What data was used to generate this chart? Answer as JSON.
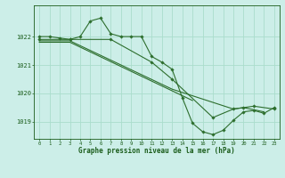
{
  "background_color": "#cceee8",
  "grid_color": "#aaddcc",
  "line_color": "#2d6e2d",
  "marker_color": "#2d6e2d",
  "xlabel": "Graphe pression niveau de la mer (hPa)",
  "xlabel_color": "#1a5c1a",
  "tick_label_color": "#1a5c1a",
  "xlim": [
    -0.5,
    23.5
  ],
  "ylim": [
    1018.4,
    1023.1
  ],
  "yticks": [
    1019,
    1020,
    1021,
    1022
  ],
  "lines_full": [
    {
      "x": [
        0,
        1,
        2,
        3,
        4,
        5,
        6,
        7,
        8,
        9,
        10,
        11,
        12,
        13,
        14,
        15,
        16,
        17,
        18,
        19,
        20,
        21,
        22,
        23
      ],
      "y": [
        1022.0,
        1022.0,
        1021.95,
        1021.9,
        1022.0,
        1022.55,
        1022.65,
        1022.1,
        1022.0,
        1022.0,
        1022.0,
        1021.3,
        1021.1,
        1020.85,
        1019.85,
        1018.95,
        1018.65,
        1018.55,
        1018.7,
        1019.05,
        1019.35,
        1019.4,
        1019.3,
        1019.5
      ],
      "has_markers": true
    },
    {
      "x": [
        0,
        3,
        7,
        11,
        13,
        17,
        19,
        20,
        21,
        23
      ],
      "y": [
        1021.9,
        1021.9,
        1021.9,
        1021.1,
        1020.5,
        1019.15,
        1019.45,
        1019.5,
        1019.55,
        1019.45
      ],
      "has_markers": true
    },
    {
      "x": [
        0,
        3,
        13,
        19,
        20,
        22
      ],
      "y": [
        1021.85,
        1021.85,
        1020.15,
        1019.45,
        1019.5,
        1019.35
      ],
      "has_markers": false
    },
    {
      "x": [
        0,
        3,
        15
      ],
      "y": [
        1021.8,
        1021.8,
        1019.75
      ],
      "has_markers": false
    }
  ]
}
